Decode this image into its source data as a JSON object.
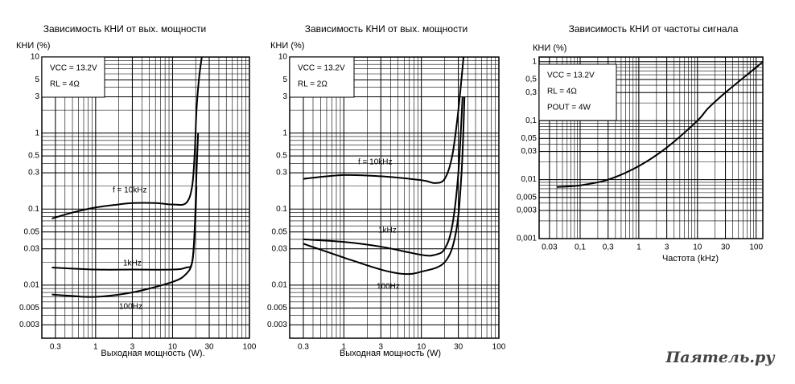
{
  "chart_data": [
    {
      "type": "line",
      "title": "Зависимость КНИ от вых. мощности",
      "ylabel": "КНИ (%)",
      "xlabel": "Выходная мощность (W).",
      "log_x": true,
      "log_y": true,
      "grid": true,
      "minor_grid": true,
      "xlim": [
        0.2,
        100
      ],
      "ylim": [
        0.002,
        10
      ],
      "xticks": [
        0.3,
        1,
        3,
        10,
        30,
        100
      ],
      "yticks": [
        10,
        5,
        3,
        1,
        0.5,
        0.3,
        0.1,
        0.05,
        0.03,
        0.01,
        0.005,
        0.003
      ],
      "annotations": [
        "VCC = 13.2V",
        "RL = 4Ω"
      ],
      "series": [
        {
          "name": "f = 10kHz",
          "color": "#000000",
          "x": [
            0.27,
            0.5,
            1,
            2,
            3,
            6,
            10,
            15,
            18,
            19.5,
            20.5,
            22,
            24
          ],
          "values": [
            0.075,
            0.09,
            0.105,
            0.115,
            0.12,
            0.12,
            0.115,
            0.12,
            0.2,
            0.6,
            2,
            5,
            10
          ]
        },
        {
          "name": "1kHz",
          "color": "#000000",
          "x": [
            0.27,
            1,
            3,
            10,
            15,
            18,
            19.5,
            20.5,
            21.5
          ],
          "values": [
            0.017,
            0.016,
            0.016,
            0.016,
            0.017,
            0.02,
            0.06,
            0.3,
            1
          ]
        },
        {
          "name": "100Hz",
          "color": "#000000",
          "x": [
            0.27,
            0.5,
            1,
            3,
            10,
            15,
            18,
            19.5,
            20.5
          ],
          "values": [
            0.0075,
            0.0072,
            0.007,
            0.008,
            0.011,
            0.014,
            0.02,
            0.05,
            0.2
          ]
        }
      ]
    },
    {
      "type": "line",
      "title": "Зависимость КНИ от вых. мощности",
      "ylabel": "КНИ (%)",
      "xlabel": "Выходная мощность (W)",
      "log_x": true,
      "log_y": true,
      "grid": true,
      "minor_grid": true,
      "xlim": [
        0.2,
        100
      ],
      "ylim": [
        0.002,
        10
      ],
      "xticks": [
        0.3,
        1,
        3,
        10,
        30,
        100
      ],
      "yticks": [
        10,
        5,
        3,
        1,
        0.5,
        0.3,
        0.1,
        0.05,
        0.03,
        0.01,
        0.005,
        0.003
      ],
      "annotations": [
        "VCC = 13.2V",
        "RL = 2Ω"
      ],
      "series": [
        {
          "name": "f = 10kHz",
          "color": "#000000",
          "x": [
            0.3,
            1,
            3,
            10,
            15,
            20,
            25,
            30,
            35
          ],
          "values": [
            0.25,
            0.28,
            0.27,
            0.24,
            0.22,
            0.25,
            0.5,
            2,
            10
          ]
        },
        {
          "name": "1kHz",
          "color": "#000000",
          "x": [
            0.3,
            1,
            3,
            10,
            15,
            20,
            25,
            30,
            34
          ],
          "values": [
            0.04,
            0.037,
            0.032,
            0.025,
            0.025,
            0.03,
            0.06,
            0.3,
            3
          ]
        },
        {
          "name": "100Hz",
          "color": "#000000",
          "x": [
            0.3,
            1,
            3,
            6,
            10,
            20,
            28,
            33,
            36
          ],
          "values": [
            0.035,
            0.023,
            0.016,
            0.014,
            0.015,
            0.02,
            0.05,
            0.3,
            3
          ]
        }
      ]
    },
    {
      "type": "line",
      "title": "Зависимость КНИ от частоты сигнала",
      "ylabel": "КНИ (%)",
      "xlabel": "Частота (kHz)",
      "log_x": true,
      "log_y": true,
      "grid": true,
      "minor_grid": true,
      "xlim": [
        0.02,
        130
      ],
      "ylim": [
        0.001,
        1.2
      ],
      "xticks": [
        {
          "value": 0.03,
          "label": "0.03"
        },
        {
          "value": 0.1,
          "label": "0,1"
        },
        {
          "value": 0.3,
          "label": "0,3"
        },
        1,
        3,
        10,
        30,
        100
      ],
      "yticks": [
        1,
        {
          "value": 0.5,
          "label": "0,5"
        },
        {
          "value": 0.3,
          "label": "0,3"
        },
        {
          "value": 0.1,
          "label": "0,1"
        },
        {
          "value": 0.05,
          "label": "0,05"
        },
        {
          "value": 0.03,
          "label": "0,03"
        },
        {
          "value": 0.01,
          "label": "0,01"
        },
        {
          "value": 0.005,
          "label": "0,005"
        },
        {
          "value": 0.003,
          "label": "0,003"
        },
        {
          "value": 0.001,
          "label": "0,001"
        }
      ],
      "annotations": [
        "VCC = 13.2V",
        "RL = 4Ω",
        "POUT = 4W"
      ],
      "series": [
        {
          "name": "",
          "color": "#000000",
          "x": [
            0.04,
            0.1,
            0.3,
            1,
            3,
            10,
            15,
            30,
            100,
            130
          ],
          "values": [
            0.0075,
            0.008,
            0.01,
            0.017,
            0.035,
            0.1,
            0.16,
            0.3,
            0.8,
            1
          ]
        }
      ]
    }
  ],
  "watermark": "Паятель.ру"
}
